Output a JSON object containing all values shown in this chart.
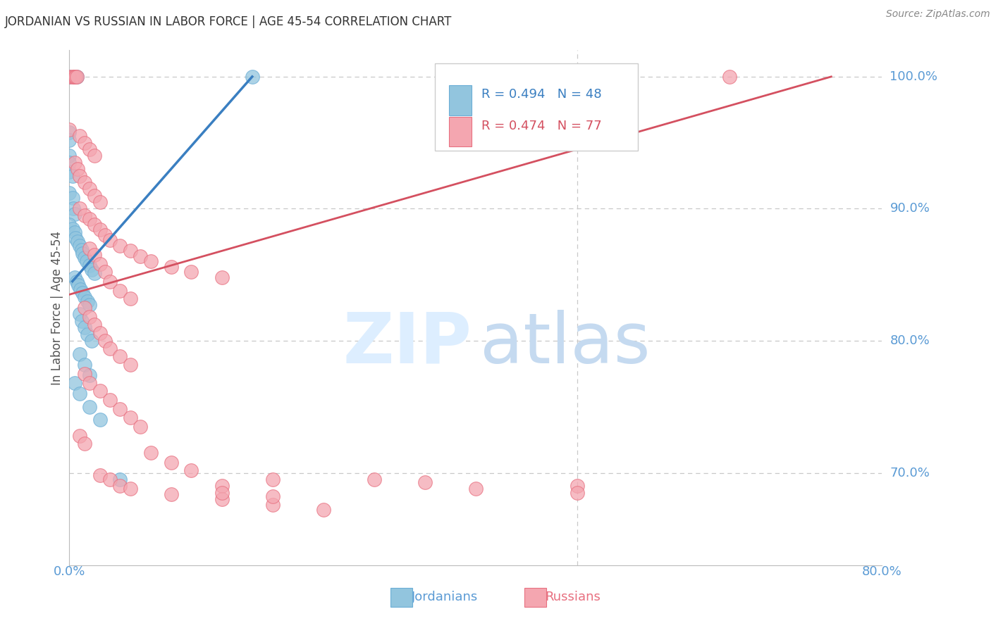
{
  "title": "JORDANIAN VS RUSSIAN IN LABOR FORCE | AGE 45-54 CORRELATION CHART",
  "source": "Source: ZipAtlas.com",
  "ylabel": "In Labor Force | Age 45-54",
  "watermark_zip": "ZIP",
  "watermark_atlas": "atlas",
  "legend_blue_label": "Jordanians",
  "legend_pink_label": "Russians",
  "blue_R": 0.494,
  "blue_N": 48,
  "pink_R": 0.474,
  "pink_N": 77,
  "xmin": 0.0,
  "xmax": 0.8,
  "ymin": 0.63,
  "ymax": 1.02,
  "right_yticks": [
    0.7,
    0.8,
    0.9,
    1.0
  ],
  "right_ytick_labels": [
    "70.0%",
    "80.0%",
    "90.0%",
    "100.0%"
  ],
  "grid_color": "#c8c8c8",
  "blue_color": "#92c5de",
  "blue_edge_color": "#6baed6",
  "pink_color": "#f4a6b0",
  "pink_edge_color": "#e87080",
  "blue_line_color": "#3a7fc1",
  "pink_line_color": "#d45060",
  "right_axis_color": "#5b9bd5",
  "title_color": "#333333",
  "source_color": "#888888",
  "blue_dots": [
    [
      0.0,
      1.0
    ],
    [
      0.006,
      1.0
    ],
    [
      0.007,
      1.0
    ],
    [
      0.18,
      1.0
    ],
    [
      0.0,
      0.958
    ],
    [
      0.0,
      0.952
    ],
    [
      0.0,
      0.94
    ],
    [
      0.0,
      0.935
    ],
    [
      0.0,
      0.928
    ],
    [
      0.003,
      0.925
    ],
    [
      0.0,
      0.912
    ],
    [
      0.003,
      0.908
    ],
    [
      0.004,
      0.9
    ],
    [
      0.005,
      0.896
    ],
    [
      0.0,
      0.888
    ],
    [
      0.003,
      0.885
    ],
    [
      0.005,
      0.882
    ],
    [
      0.006,
      0.878
    ],
    [
      0.008,
      0.875
    ],
    [
      0.01,
      0.872
    ],
    [
      0.012,
      0.869
    ],
    [
      0.013,
      0.866
    ],
    [
      0.015,
      0.863
    ],
    [
      0.017,
      0.86
    ],
    [
      0.02,
      0.857
    ],
    [
      0.022,
      0.854
    ],
    [
      0.025,
      0.851
    ],
    [
      0.005,
      0.848
    ],
    [
      0.007,
      0.845
    ],
    [
      0.009,
      0.842
    ],
    [
      0.011,
      0.839
    ],
    [
      0.013,
      0.836
    ],
    [
      0.015,
      0.833
    ],
    [
      0.018,
      0.83
    ],
    [
      0.02,
      0.827
    ],
    [
      0.01,
      0.82
    ],
    [
      0.012,
      0.815
    ],
    [
      0.015,
      0.81
    ],
    [
      0.018,
      0.805
    ],
    [
      0.022,
      0.8
    ],
    [
      0.01,
      0.79
    ],
    [
      0.015,
      0.782
    ],
    [
      0.02,
      0.774
    ],
    [
      0.005,
      0.768
    ],
    [
      0.01,
      0.76
    ],
    [
      0.02,
      0.75
    ],
    [
      0.03,
      0.74
    ],
    [
      0.05,
      0.695
    ]
  ],
  "pink_dots": [
    [
      0.0,
      1.0
    ],
    [
      0.003,
      1.0
    ],
    [
      0.004,
      1.0
    ],
    [
      0.005,
      1.0
    ],
    [
      0.006,
      1.0
    ],
    [
      0.007,
      1.0
    ],
    [
      0.65,
      1.0
    ],
    [
      0.0,
      0.96
    ],
    [
      0.01,
      0.955
    ],
    [
      0.015,
      0.95
    ],
    [
      0.02,
      0.945
    ],
    [
      0.025,
      0.94
    ],
    [
      0.005,
      0.935
    ],
    [
      0.008,
      0.93
    ],
    [
      0.01,
      0.925
    ],
    [
      0.015,
      0.92
    ],
    [
      0.02,
      0.915
    ],
    [
      0.025,
      0.91
    ],
    [
      0.03,
      0.905
    ],
    [
      0.01,
      0.9
    ],
    [
      0.015,
      0.895
    ],
    [
      0.02,
      0.892
    ],
    [
      0.025,
      0.888
    ],
    [
      0.03,
      0.884
    ],
    [
      0.035,
      0.88
    ],
    [
      0.04,
      0.876
    ],
    [
      0.05,
      0.872
    ],
    [
      0.06,
      0.868
    ],
    [
      0.07,
      0.864
    ],
    [
      0.08,
      0.86
    ],
    [
      0.1,
      0.856
    ],
    [
      0.12,
      0.852
    ],
    [
      0.15,
      0.848
    ],
    [
      0.02,
      0.87
    ],
    [
      0.025,
      0.865
    ],
    [
      0.03,
      0.858
    ],
    [
      0.035,
      0.852
    ],
    [
      0.04,
      0.845
    ],
    [
      0.05,
      0.838
    ],
    [
      0.06,
      0.832
    ],
    [
      0.015,
      0.825
    ],
    [
      0.02,
      0.818
    ],
    [
      0.025,
      0.812
    ],
    [
      0.03,
      0.806
    ],
    [
      0.035,
      0.8
    ],
    [
      0.04,
      0.794
    ],
    [
      0.05,
      0.788
    ],
    [
      0.06,
      0.782
    ],
    [
      0.015,
      0.775
    ],
    [
      0.02,
      0.768
    ],
    [
      0.03,
      0.762
    ],
    [
      0.04,
      0.755
    ],
    [
      0.05,
      0.748
    ],
    [
      0.06,
      0.742
    ],
    [
      0.07,
      0.735
    ],
    [
      0.01,
      0.728
    ],
    [
      0.015,
      0.722
    ],
    [
      0.08,
      0.715
    ],
    [
      0.1,
      0.708
    ],
    [
      0.12,
      0.702
    ],
    [
      0.2,
      0.695
    ],
    [
      0.15,
      0.69
    ],
    [
      0.3,
      0.695
    ],
    [
      0.35,
      0.693
    ],
    [
      0.5,
      0.69
    ],
    [
      0.1,
      0.684
    ],
    [
      0.15,
      0.68
    ],
    [
      0.2,
      0.676
    ],
    [
      0.25,
      0.672
    ],
    [
      0.03,
      0.698
    ],
    [
      0.04,
      0.695
    ],
    [
      0.05,
      0.69
    ],
    [
      0.06,
      0.688
    ],
    [
      0.15,
      0.685
    ],
    [
      0.2,
      0.682
    ],
    [
      0.4,
      0.688
    ],
    [
      0.5,
      0.685
    ]
  ],
  "blue_trend_x": [
    0.003,
    0.18
  ],
  "blue_trend_y": [
    0.845,
    1.0
  ],
  "pink_trend_x": [
    0.0,
    0.75
  ],
  "pink_trend_y": [
    0.835,
    1.0
  ],
  "background_color": "#ffffff"
}
